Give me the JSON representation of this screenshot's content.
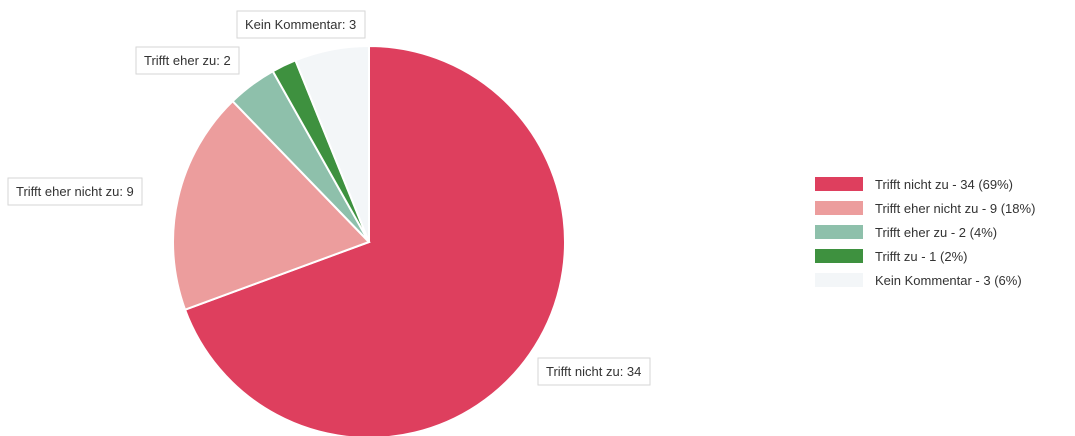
{
  "chart_data": {
    "type": "pie",
    "slices": [
      {
        "label": "Trifft nicht zu",
        "value": 34,
        "percent": 69,
        "color": "#de3f5e",
        "callout": "Trifft nicht zu: 34",
        "legend": "Trifft nicht zu - 34 (69%)"
      },
      {
        "label": "Trifft eher nicht zu",
        "value": 9,
        "percent": 18,
        "color": "#ec9d9d",
        "callout": "Trifft eher nicht zu: 9",
        "legend": "Trifft eher nicht zu - 9 (18%)"
      },
      {
        "label": "Trifft eher zu",
        "value": 2,
        "percent": 4,
        "color": "#8ec0ab",
        "callout": "Trifft eher zu: 2",
        "legend": "Trifft eher zu - 2 (4%)"
      },
      {
        "label": "Trifft zu",
        "value": 1,
        "percent": 2,
        "color": "#3e913f",
        "callout": "",
        "legend": "Trifft zu - 1 (2%)"
      },
      {
        "label": "Kein Kommentar",
        "value": 3,
        "percent": 6,
        "color": "#f3f6f8",
        "callout": "Kein Kommentar: 3",
        "legend": "Kein Kommentar - 3 (6%)"
      }
    ],
    "legend_position": "right"
  }
}
